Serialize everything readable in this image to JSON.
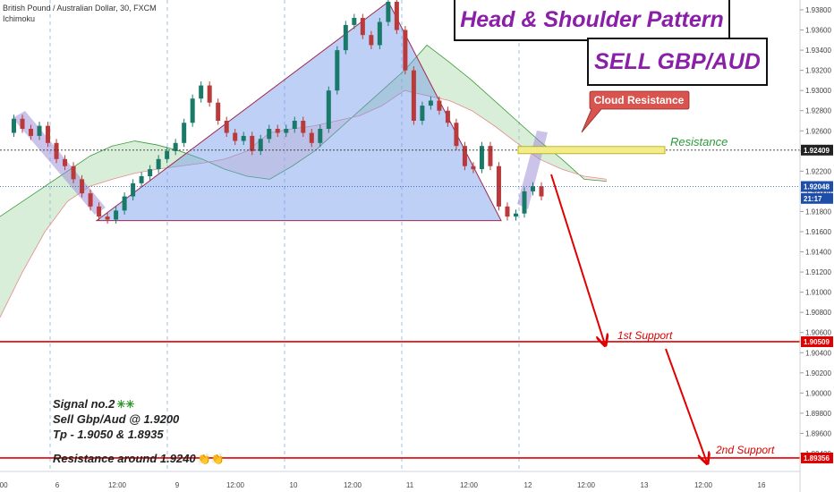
{
  "header": {
    "symbol": "British Pound / Australian Dollar, 30, FXCM",
    "indicator": "Ichimoku"
  },
  "titles": {
    "pattern": "Head & Shoulder Pattern",
    "trade": "SELL GBP/AUD"
  },
  "callouts": {
    "cloud_resistance": "Cloud Resistance",
    "resistance": "Resistance",
    "support1": "1st Support",
    "support2": "2nd Support"
  },
  "notes": {
    "signal": "Signal no.2",
    "signal_icons": "✳✳",
    "entry": "Sell Gbp/Aud @ 1.9200",
    "tp": "Tp - 1.9050 & 1.8935",
    "resistance": "Resistance around 1.9240",
    "resistance_icons": "👏👏"
  },
  "colors": {
    "pattern_title": "#8a1fa8",
    "support_line": "#e00000",
    "resistance_zone": "#f3ec8a",
    "cloud_callout": "#d9534f",
    "triangle_fill": "#6f96e8",
    "cloud_green": "#3a9a3a",
    "cloud_red": "#e58b8b",
    "resistance_text": "#2e9a3a"
  },
  "chart_data": {
    "type": "candlestick",
    "title": "British Pound / Australian Dollar, 30, FXCM",
    "indicator": "Ichimoku",
    "ylim": [
      1.8925,
      1.9395
    ],
    "y_ticks": [
      "1.93800",
      "1.93600",
      "1.93400",
      "1.93200",
      "1.93000",
      "1.92800",
      "1.92600",
      "1.92400",
      "1.92200",
      "1.92000",
      "1.91800",
      "1.91600",
      "1.91400",
      "1.91200",
      "1.91000",
      "1.90800",
      "1.90600",
      "1.90400",
      "1.90200",
      "1.90000",
      "1.89800",
      "1.89600",
      "1.89400"
    ],
    "x_ticks": [
      ":00",
      "6",
      "12:00",
      "9",
      "12:00",
      "10",
      "12:00",
      "11",
      "12:00",
      "12",
      "12:00",
      "13",
      "12:00",
      "16"
    ],
    "price_labels": [
      {
        "text": "1.92409",
        "value": 1.92409,
        "kind": "dotted"
      },
      {
        "text": "1.92048",
        "value": 1.92048,
        "kind": "current"
      },
      {
        "text": "21:17",
        "value": 1.9193,
        "kind": "timer"
      },
      {
        "text": "1.90509",
        "value": 1.90509,
        "kind": "support"
      },
      {
        "text": "1.89356",
        "value": 1.89356,
        "kind": "support"
      }
    ],
    "levels": {
      "resistance": 1.924,
      "support1": 1.90509,
      "support2": 1.89356,
      "current": 1.92048
    },
    "head_shoulders": {
      "left_base": 1.9171,
      "head": 1.9388,
      "right_base": 1.9171
    },
    "price_path": [
      1.9258,
      1.9272,
      1.9262,
      1.9255,
      1.9265,
      1.9248,
      1.9232,
      1.9225,
      1.9212,
      1.9198,
      1.9185,
      1.9175,
      1.9172,
      1.9181,
      1.9195,
      1.9208,
      1.9215,
      1.9222,
      1.9232,
      1.924,
      1.9248,
      1.9268,
      1.9292,
      1.9305,
      1.9288,
      1.927,
      1.9258,
      1.925,
      1.9255,
      1.924,
      1.9252,
      1.9262,
      1.9258,
      1.9262,
      1.927,
      1.9258,
      1.9248,
      1.9262,
      1.93,
      1.934,
      1.9365,
      1.9372,
      1.9355,
      1.9345,
      1.9368,
      1.9388,
      1.936,
      1.932,
      1.927,
      1.9285,
      1.929,
      1.928,
      1.9268,
      1.9245,
      1.9225,
      1.9222,
      1.9245,
      1.9225,
      1.9185,
      1.9175,
      1.9178,
      1.92,
      1.9205,
      1.9195
    ],
    "cloud_span_a": [
      1.9175,
      1.919,
      1.9205,
      1.922,
      1.9235,
      1.9245,
      1.925,
      1.9246,
      1.924,
      1.9232,
      1.9222,
      1.9215,
      1.9212,
      1.9225,
      1.924,
      1.926,
      1.928,
      1.93,
      1.932,
      1.9345,
      1.9328,
      1.931,
      1.929,
      1.927,
      1.925,
      1.9232,
      1.9212,
      1.921
    ],
    "cloud_span_b": [
      1.9075,
      1.912,
      1.916,
      1.919,
      1.9205,
      1.9212,
      1.9218,
      1.9222,
      1.9225,
      1.9228,
      1.9232,
      1.924,
      1.9258,
      1.9262,
      1.9265,
      1.927,
      1.9275,
      1.9285,
      1.93,
      1.9295,
      1.929,
      1.928,
      1.9265,
      1.9248,
      1.9232,
      1.9222,
      1.9215,
      1.9212
    ]
  }
}
